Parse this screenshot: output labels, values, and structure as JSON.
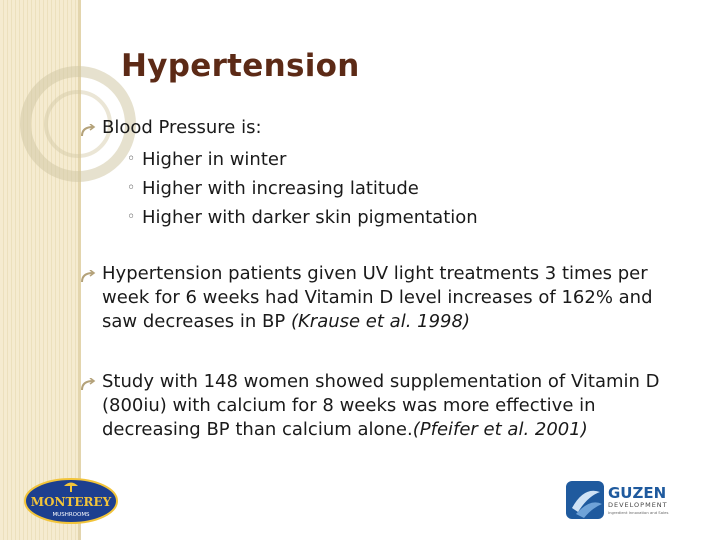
{
  "slide": {
    "title": "Hypertension",
    "bullets": [
      {
        "text": "Blood Pressure is:",
        "sub_items": [
          "Higher in winter",
          "Higher with increasing latitude",
          "Higher with darker skin pigmentation"
        ]
      },
      {
        "text": "Hypertension patients given UV light treatments 3 times per week for 6 weeks had Vitamin D level increases of 162% and saw decreases in BP ",
        "citation": "(Krause et al. 1998)"
      },
      {
        "text": "Study with 148 women showed supplementation of Vitamin D (800iu) with calcium for 8 weeks was more effective in decreasing BP than calcium alone.",
        "citation": "(Pfeifer et al. 2001)"
      }
    ],
    "sub_bullet_glyph": "◦"
  },
  "logos": {
    "left": {
      "name": "MONTEREY",
      "tagline": "MUSHROOMS"
    },
    "right": {
      "name": "GUZEN",
      "subtitle": "DEVELOPMENT",
      "tagline": "Ingredient Innovation and Sales"
    }
  },
  "colors": {
    "title": "#5c2a16",
    "accent_strip": "#f5ebd0",
    "bullet": "#b4a27a",
    "monterey_blue": "#1d3f8f",
    "monterey_gold": "#f2c43a",
    "guzen_blue": "#1f5a9e"
  },
  "icons": {
    "bullet": "curved-arrow-icon",
    "sub_bullet": "hollow-circle-icon"
  }
}
